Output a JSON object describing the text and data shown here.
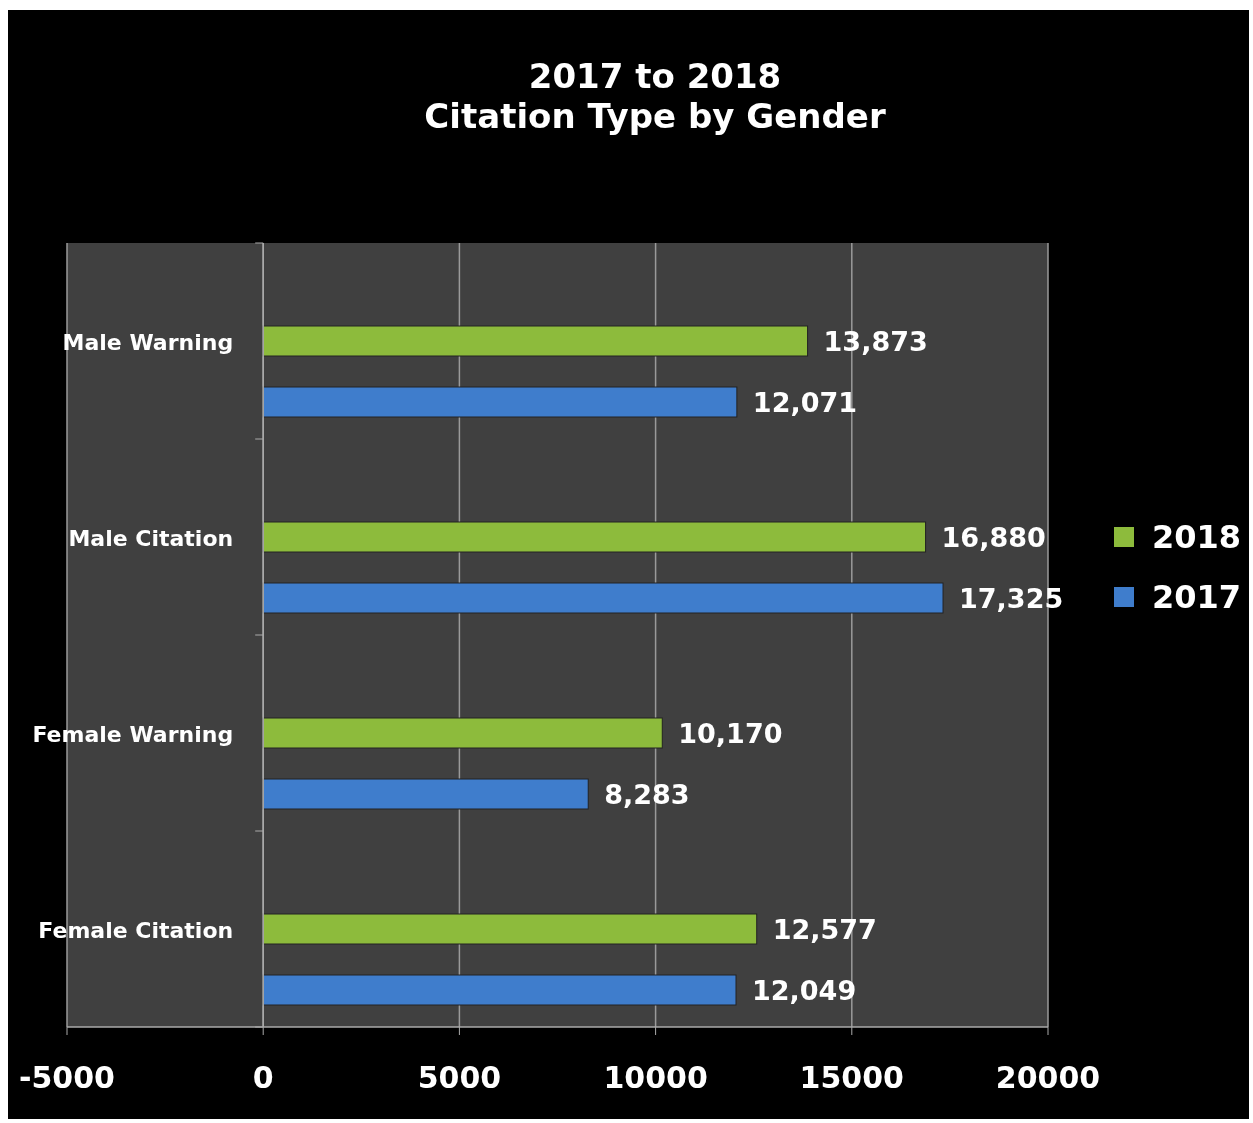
{
  "chart_data": {
    "type": "bar",
    "orientation": "horizontal",
    "title": "2017 to 2018\nCitation Type by Gender",
    "categories": [
      "Male Warning",
      "Male Citation",
      "Female Warning",
      "Female Citation"
    ],
    "series": [
      {
        "name": "2018",
        "color": "#8dbb3c",
        "values": [
          13873,
          16880,
          10170,
          12577
        ],
        "value_labels": [
          "13,873",
          "16,880",
          "10,170",
          "12,577"
        ]
      },
      {
        "name": "2017",
        "color": "#3f7dcc",
        "values": [
          12071,
          17325,
          8283,
          12049
        ],
        "value_labels": [
          "12,071",
          "17,325",
          "8,283",
          "12,049"
        ]
      }
    ],
    "xlim": [
      -5000,
      20000
    ],
    "xticks": [
      -5000,
      0,
      5000,
      10000,
      15000,
      20000
    ],
    "grid": "x",
    "legend": "right"
  }
}
